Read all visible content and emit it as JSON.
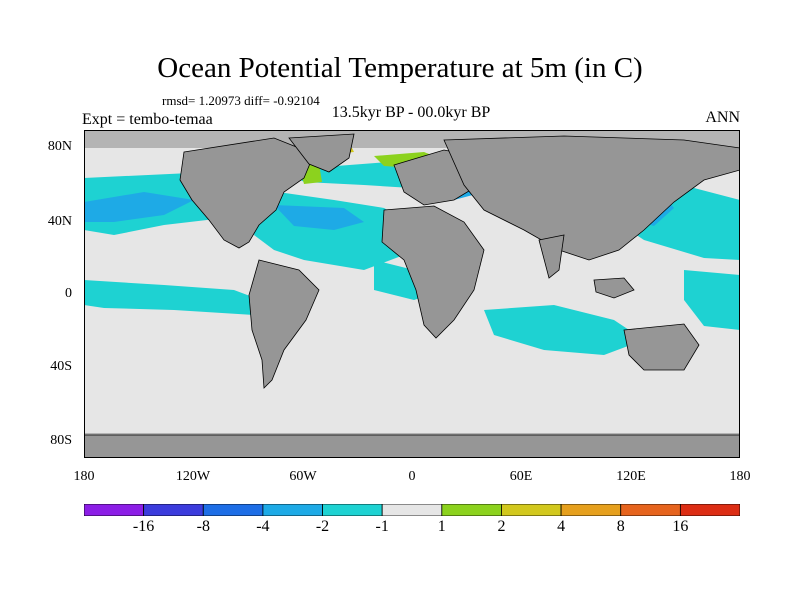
{
  "title": "Ocean Potential Temperature at 5m (in C)",
  "stats": "rmsd= 1.20973 diff= -0.92104",
  "experiment": "Expt = tembo-temaa",
  "period": "13.5kyr BP - 00.0kyr BP",
  "season": "ANN",
  "y_axis_labels": [
    "80N",
    "40N",
    "0",
    "40S",
    "80S"
  ],
  "x_axis_labels": [
    "180",
    "120W",
    "60W",
    "0",
    "60E",
    "120E",
    "180"
  ],
  "colorbar": {
    "labels": [
      "-16",
      "-8",
      "-4",
      "-2",
      "-1",
      "1",
      "2",
      "4",
      "8",
      "16"
    ],
    "colors": [
      "#8c1ee6",
      "#3c3cdc",
      "#1e6ee6",
      "#1eaae6",
      "#1ed2d2",
      "#e6e6e6",
      "#8cd21e",
      "#d2c81e",
      "#e6a01e",
      "#e6641e",
      "#dc2d14"
    ]
  },
  "map_colors": {
    "ocean_default": "#e6e6e6",
    "land": "#969696",
    "sea_ice": "#b4b4b4",
    "cooling_1_2": "#1ed2d2",
    "cooling_2_4": "#1eaae6",
    "cooling_4_8": "#1e6ee6",
    "warming_1_2": "#8cd21e",
    "warming_2_4": "#d2c81e"
  }
}
